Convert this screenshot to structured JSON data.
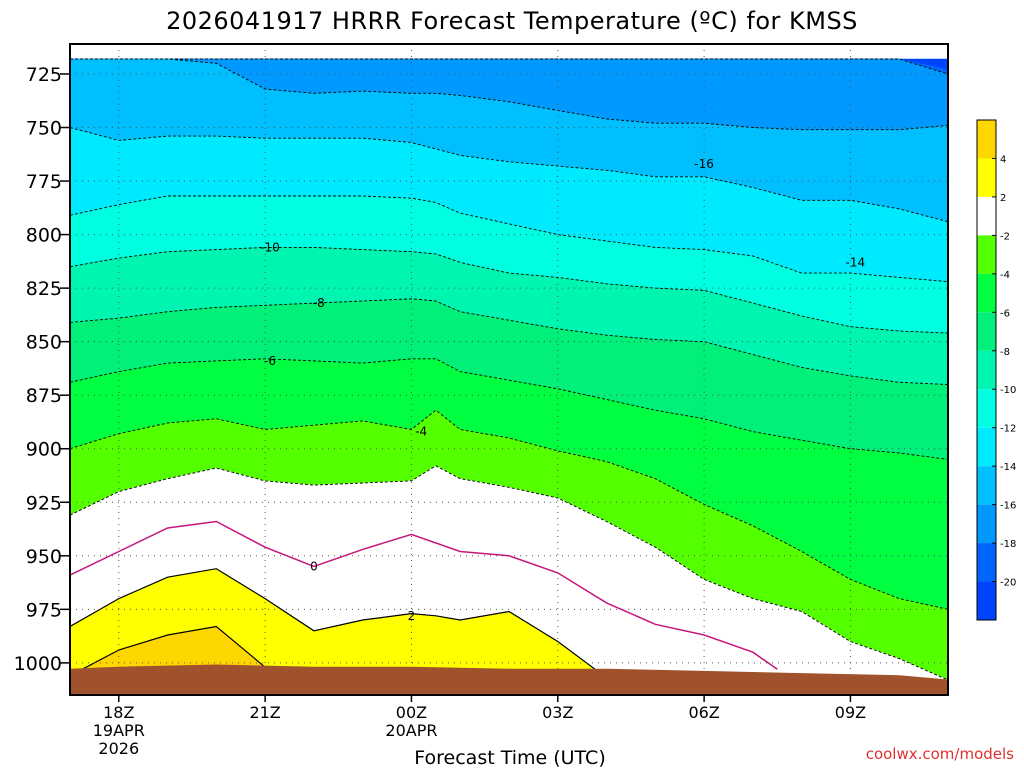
{
  "chart_data": {
    "type": "heatmap",
    "title": "2026041917 HRRR Forecast Temperature (ºC) for KMSS",
    "xlabel": "Forecast Time (UTC)",
    "ylabel": "",
    "x_ticks": [
      {
        "hour": 18,
        "lines": [
          "18Z",
          "19APR",
          "2026"
        ]
      },
      {
        "hour": 21,
        "lines": [
          "21Z"
        ]
      },
      {
        "hour": 24,
        "lines": [
          "00Z",
          "20APR"
        ]
      },
      {
        "hour": 27,
        "lines": [
          "03Z"
        ]
      },
      {
        "hour": 30,
        "lines": [
          "06Z"
        ]
      },
      {
        "hour": 33,
        "lines": [
          "09Z"
        ]
      }
    ],
    "xlim": [
      17,
      35
    ],
    "y_ticks": [
      "725",
      "750",
      "775",
      "800",
      "825",
      "850",
      "875",
      "900",
      "925",
      "950",
      "975",
      "1000"
    ],
    "ylim": [
      1015,
      711
    ],
    "grid": true,
    "colorbar": {
      "position": "right",
      "labels": [
        "4",
        "2",
        "-2",
        "-4",
        "-6",
        "-8",
        "-10",
        "-12",
        "-14",
        "-16",
        "-18",
        "-20"
      ],
      "colors": [
        "#ffd700",
        "#ffff00",
        "#ffffff",
        "#54ff00",
        "#00ff40",
        "#00f07a",
        "#00f5b0",
        "#00ffe0",
        "#00eaff",
        "#00bfff",
        "#0099ff",
        "#0066ff",
        "#0044ff"
      ]
    },
    "contour_labels": [
      {
        "text": "-16",
        "x": 30.0,
        "y": 767
      },
      {
        "text": "-14",
        "x": 33.1,
        "y": 813
      },
      {
        "text": "-10",
        "x": 21.1,
        "y": 806
      },
      {
        "text": "-8",
        "x": 22.1,
        "y": 832
      },
      {
        "text": "-6",
        "x": 21.1,
        "y": 859
      },
      {
        "text": "-4",
        "x": 24.2,
        "y": 892
      },
      {
        "text": "0",
        "x": 22.0,
        "y": 955
      },
      {
        "text": "2",
        "x": 24.0,
        "y": 978
      }
    ],
    "bands": [
      {
        "lo": -22,
        "hi": -20,
        "color": "#0044ff",
        "top": [
          718,
          718,
          718,
          718,
          718,
          718,
          718,
          718,
          718,
          718,
          718,
          718,
          718,
          718,
          718,
          718,
          718,
          718,
          718,
          718,
          718
        ],
        "bottom": [
          718,
          718,
          718,
          718,
          718,
          718,
          718,
          718,
          718,
          718,
          718,
          718,
          718,
          718,
          718,
          718,
          718,
          718,
          718,
          723,
          725
        ]
      },
      {
        "lo": -20,
        "hi": -18,
        "color": "#0066ff",
        "top": [
          718,
          718,
          718,
          718,
          718,
          718,
          718,
          718,
          718,
          718,
          718,
          718,
          718,
          718,
          718,
          718,
          718,
          718,
          718,
          723,
          725
        ],
        "bottom": [
          718,
          718,
          718,
          718,
          718,
          718,
          718,
          718,
          718,
          718,
          718,
          718,
          718,
          718,
          718,
          718,
          718,
          718,
          718,
          725,
          727
        ]
      },
      {
        "lo": -18,
        "hi": -16,
        "color": "#0099ff",
        "top": [
          718,
          718,
          718,
          718,
          718,
          718,
          718,
          718,
          718,
          718,
          718,
          718,
          718,
          718,
          718,
          718,
          718,
          718,
          718,
          725,
          727
        ],
        "bottom": [
          718,
          718,
          718,
          720,
          732,
          734,
          733,
          734,
          734,
          735,
          738,
          742,
          746,
          748,
          748,
          750,
          751,
          751,
          751,
          749,
          746
        ]
      },
      {
        "lo": -16,
        "hi": -14,
        "color": "#00bfff",
        "top": [
          718,
          718,
          718,
          720,
          732,
          734,
          733,
          734,
          734,
          735,
          738,
          742,
          746,
          748,
          748,
          750,
          751,
          751,
          751,
          749,
          746
        ],
        "bottom": [
          750,
          756,
          754,
          754,
          755,
          755,
          755,
          757,
          760,
          763,
          766,
          768,
          770,
          773,
          773,
          778,
          784,
          784,
          788,
          794,
          800
        ]
      },
      {
        "lo": -14,
        "hi": -12,
        "color": "#00eaff",
        "top": [
          750,
          756,
          754,
          754,
          755,
          755,
          755,
          757,
          760,
          763,
          766,
          768,
          770,
          773,
          773,
          778,
          784,
          784,
          788,
          794,
          800
        ],
        "bottom": [
          791,
          786,
          782,
          782,
          782,
          782,
          782,
          783,
          785,
          790,
          795,
          800,
          803,
          806,
          807,
          810,
          818,
          818,
          820,
          822,
          826
        ]
      },
      {
        "lo": -12,
        "hi": -10,
        "color": "#00ffe0",
        "top": [
          791,
          786,
          782,
          782,
          782,
          782,
          782,
          783,
          785,
          790,
          795,
          800,
          803,
          806,
          807,
          810,
          818,
          818,
          820,
          822,
          826
        ],
        "bottom": [
          815,
          811,
          808,
          807,
          806,
          806,
          807,
          808,
          809,
          813,
          818,
          820,
          823,
          825,
          826,
          832,
          838,
          843,
          845,
          846,
          848
        ]
      },
      {
        "lo": -10,
        "hi": -8,
        "color": "#00f5b0",
        "top": [
          815,
          811,
          808,
          807,
          806,
          806,
          807,
          808,
          809,
          813,
          818,
          820,
          823,
          825,
          826,
          832,
          838,
          843,
          845,
          846,
          848
        ],
        "bottom": [
          841,
          839,
          836,
          834,
          833,
          832,
          831,
          830,
          831,
          836,
          840,
          844,
          847,
          849,
          850,
          856,
          862,
          866,
          869,
          870,
          872
        ]
      },
      {
        "lo": -8,
        "hi": -6,
        "color": "#00f07a",
        "top": [
          841,
          839,
          836,
          834,
          833,
          832,
          831,
          830,
          831,
          836,
          840,
          844,
          847,
          849,
          850,
          856,
          862,
          866,
          869,
          870,
          872
        ],
        "bottom": [
          869,
          864,
          860,
          859,
          858,
          859,
          860,
          858,
          858,
          864,
          868,
          872,
          877,
          882,
          886,
          892,
          896,
          900,
          902,
          905,
          909
        ]
      },
      {
        "lo": -6,
        "hi": -4,
        "color": "#00ff40",
        "top": [
          869,
          864,
          860,
          859,
          858,
          859,
          860,
          858,
          858,
          864,
          868,
          872,
          877,
          882,
          886,
          892,
          896,
          900,
          902,
          905,
          909
        ],
        "bottom": [
          900,
          893,
          888,
          886,
          891,
          889,
          887,
          891,
          882,
          891,
          895,
          901,
          906,
          914,
          926,
          936,
          948,
          961,
          970,
          975,
          979
        ]
      },
      {
        "lo": -4,
        "hi": -2,
        "color": "#54ff00",
        "top": [
          900,
          893,
          888,
          886,
          891,
          889,
          887,
          891,
          882,
          891,
          895,
          901,
          906,
          914,
          926,
          936,
          948,
          961,
          970,
          975,
          979
        ],
        "bottom": [
          931,
          920,
          914,
          909,
          915,
          917,
          916,
          915,
          908,
          914,
          918,
          923,
          934,
          946,
          961,
          970,
          976,
          990,
          998,
          1008,
          1015
        ]
      },
      {
        "lo": -2,
        "hi": 2,
        "color": "#ffffff",
        "top": [
          931,
          920,
          914,
          909,
          915,
          917,
          916,
          915,
          908,
          914,
          918,
          923,
          934,
          946,
          961,
          970,
          976,
          990,
          998,
          1008,
          1015
        ],
        "bottom": [
          983,
          970,
          960,
          956,
          970,
          985,
          980,
          977,
          978,
          980,
          976,
          990,
          1007,
          1015,
          1015,
          1015,
          1015,
          1015,
          1015,
          1015,
          1015
        ]
      },
      {
        "lo": 2,
        "hi": 4,
        "color": "#ffff00",
        "top": [
          983,
          970,
          960,
          956,
          970,
          985,
          980,
          977,
          978,
          980,
          976,
          990,
          1007,
          1015,
          1015,
          1015,
          1015,
          1015,
          1015,
          1015,
          1015
        ],
        "bottom": [
          1006,
          994,
          987,
          983,
          1002,
          1015,
          1015,
          1015,
          1015,
          1015,
          1015,
          1015,
          1015,
          1015,
          1015,
          1015,
          1015,
          1015,
          1015,
          1015,
          1015
        ]
      },
      {
        "lo": 4,
        "hi": 6,
        "color": "#ffd700",
        "top": [
          1006,
          994,
          987,
          983,
          1002,
          1015,
          1015,
          1015,
          1015,
          1015,
          1015,
          1015,
          1015,
          1015,
          1015,
          1015,
          1015,
          1015,
          1015,
          1015,
          1015
        ],
        "bottom": [
          1015,
          1015,
          1015,
          1015,
          1015,
          1015,
          1015,
          1015,
          1015,
          1015,
          1015,
          1015,
          1015,
          1015,
          1015,
          1015,
          1015,
          1015,
          1015,
          1015,
          1015
        ]
      }
    ],
    "band_hours": [
      17,
      18,
      19,
      20,
      21,
      22,
      23,
      24,
      24.5,
      25,
      26,
      27,
      28,
      29,
      30,
      31,
      32,
      33,
      34,
      35,
      35.5
    ],
    "ground": {
      "color": "#a0522d",
      "hours": [
        17,
        18,
        20,
        22,
        24,
        26,
        28,
        30,
        32,
        34,
        35
      ],
      "pressure": [
        1003,
        1002,
        1001,
        1002,
        1002,
        1003,
        1003,
        1004,
        1005,
        1006,
        1008
      ]
    },
    "zero_line": {
      "hours": [
        17,
        18,
        19,
        20,
        21,
        22,
        23,
        24,
        25,
        26,
        27,
        28,
        29,
        30,
        31,
        31.5
      ],
      "pressure": [
        959,
        948,
        937,
        934,
        946,
        955,
        947,
        940,
        948,
        950,
        958,
        972,
        982,
        987,
        995,
        1003
      ]
    }
  },
  "watermark": "coolwx.com/models"
}
